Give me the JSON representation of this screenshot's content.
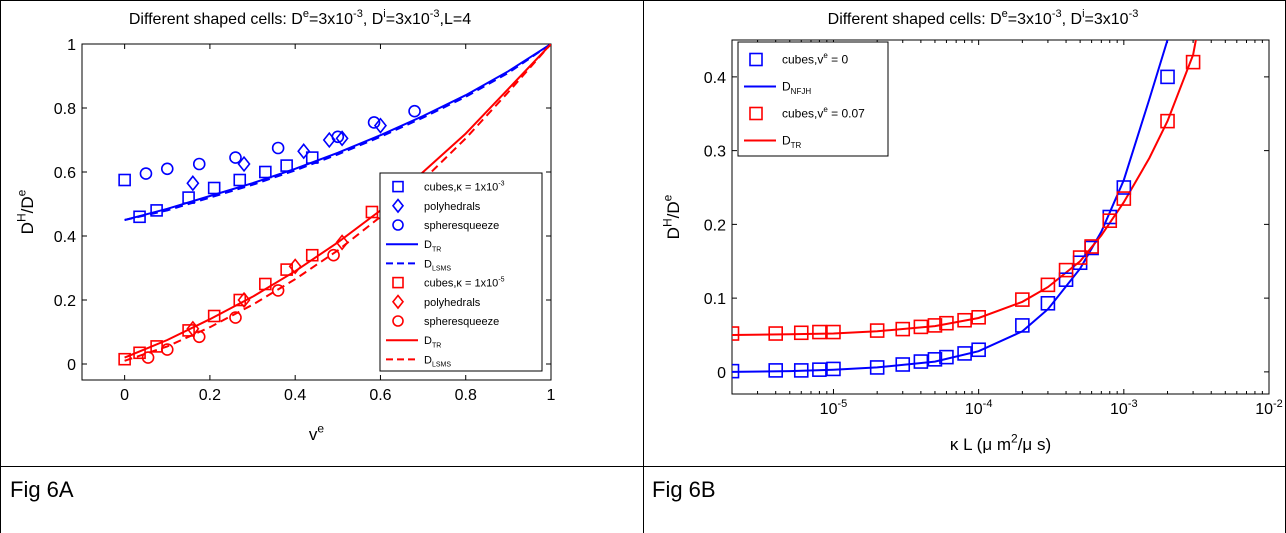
{
  "captions": {
    "left": "Fig 6A",
    "right": "Fig 6B"
  },
  "chart_data": [
    {
      "type": "scatter",
      "title": "Different shaped cells: D^e=3x10^-3, D^i=3x10^-3,L=4",
      "xlabel": "v^e",
      "ylabel": "D^H/D^e",
      "xlim": [
        -0.1,
        1.0
      ],
      "ylim": [
        -0.05,
        1.0
      ],
      "xticks": [
        0,
        0.2,
        0.4,
        0.6,
        0.8,
        1
      ],
      "xtick_labels": [
        "0",
        "0.2",
        "0.4",
        "0.6",
        "0.8",
        "1"
      ],
      "yticks": [
        0,
        0.2,
        0.4,
        0.6,
        0.8,
        1
      ],
      "ytick_labels": [
        "0",
        "0.2",
        "0.4",
        "0.6",
        "0.8",
        "1"
      ],
      "grid": false,
      "legend_position": "right",
      "legend": [
        {
          "label": "cubes,κ = 1x10^-3",
          "marker": "square",
          "color": "#0000ff"
        },
        {
          "label": "polyhedrals",
          "marker": "diamond",
          "color": "#0000ff"
        },
        {
          "label": "spheresqueeze",
          "marker": "circle",
          "color": "#0000ff"
        },
        {
          "label": "D_TR",
          "line": "solid",
          "color": "#0000ff"
        },
        {
          "label": "D_LSMS",
          "line": "dashed",
          "color": "#0000ff"
        },
        {
          "label": "cubes,κ = 1x10^-5",
          "marker": "square",
          "color": "#ff0000"
        },
        {
          "label": "polyhedrals",
          "marker": "diamond",
          "color": "#ff0000"
        },
        {
          "label": "spheresqueeze",
          "marker": "circle",
          "color": "#ff0000"
        },
        {
          "label": "D_TR",
          "line": "solid",
          "color": "#ff0000"
        },
        {
          "label": "D_LSMS",
          "line": "dashed",
          "color": "#ff0000"
        }
      ],
      "series": [
        {
          "marker": "square",
          "color": "#0000ff",
          "x": [
            0.0,
            0.035,
            0.075,
            0.15,
            0.21,
            0.27,
            0.33,
            0.38,
            0.44
          ],
          "y": [
            0.575,
            0.46,
            0.48,
            0.52,
            0.55,
            0.575,
            0.6,
            0.62,
            0.645
          ]
        },
        {
          "marker": "diamond",
          "color": "#0000ff",
          "x": [
            0.16,
            0.28,
            0.42,
            0.48,
            0.51,
            0.6
          ],
          "y": [
            0.565,
            0.625,
            0.665,
            0.7,
            0.705,
            0.745
          ]
        },
        {
          "marker": "circle",
          "color": "#0000ff",
          "x": [
            0.05,
            0.1,
            0.175,
            0.26,
            0.36,
            0.5,
            0.585,
            0.68
          ],
          "y": [
            0.595,
            0.61,
            0.625,
            0.645,
            0.675,
            0.71,
            0.755,
            0.79
          ]
        },
        {
          "marker": "square",
          "color": "#ff0000",
          "x": [
            0.0,
            0.035,
            0.075,
            0.15,
            0.21,
            0.27,
            0.33,
            0.38,
            0.44,
            0.58
          ],
          "y": [
            0.015,
            0.035,
            0.055,
            0.105,
            0.15,
            0.2,
            0.25,
            0.295,
            0.34,
            0.475
          ]
        },
        {
          "marker": "diamond",
          "color": "#ff0000",
          "x": [
            0.16,
            0.28,
            0.4,
            0.51
          ],
          "y": [
            0.11,
            0.2,
            0.305,
            0.38
          ]
        },
        {
          "marker": "circle",
          "color": "#ff0000",
          "x": [
            0.055,
            0.1,
            0.175,
            0.26,
            0.36,
            0.49
          ],
          "y": [
            0.02,
            0.045,
            0.085,
            0.145,
            0.23,
            0.34
          ]
        },
        {
          "line": "solid",
          "color": "#0000ff",
          "x": [
            0,
            0.1,
            0.2,
            0.3,
            0.4,
            0.5,
            0.6,
            0.7,
            0.8,
            0.9,
            1.0
          ],
          "y": [
            0.45,
            0.485,
            0.525,
            0.565,
            0.61,
            0.66,
            0.715,
            0.775,
            0.84,
            0.915,
            1.0
          ]
        },
        {
          "line": "dashed",
          "color": "#0000ff",
          "x": [
            0,
            0.1,
            0.2,
            0.3,
            0.4,
            0.5,
            0.6,
            0.7,
            0.8,
            0.9,
            1.0
          ],
          "y": [
            0.45,
            0.48,
            0.52,
            0.56,
            0.605,
            0.655,
            0.71,
            0.77,
            0.835,
            0.91,
            1.0
          ]
        },
        {
          "line": "solid",
          "color": "#ff0000",
          "x": [
            0,
            0.1,
            0.2,
            0.3,
            0.4,
            0.5,
            0.6,
            0.7,
            0.8,
            0.9,
            1.0
          ],
          "y": [
            0.02,
            0.075,
            0.14,
            0.21,
            0.29,
            0.38,
            0.48,
            0.6,
            0.72,
            0.86,
            1.0
          ]
        },
        {
          "line": "dashed",
          "color": "#ff0000",
          "x": [
            0,
            0.1,
            0.2,
            0.3,
            0.4,
            0.5,
            0.6,
            0.7,
            0.8,
            0.9,
            1.0
          ],
          "y": [
            0.01,
            0.055,
            0.115,
            0.185,
            0.265,
            0.355,
            0.46,
            0.575,
            0.705,
            0.85,
            1.0
          ]
        }
      ]
    },
    {
      "type": "scatter",
      "title": "Different shaped cells: D^e=3x10^-3, D^i=3x10^-3",
      "xlabel": "κ L (μ m^2/μ s)",
      "ylabel": "D^H/D^e",
      "xscale": "log",
      "xlim": [
        2e-06,
        0.01
      ],
      "ylim": [
        -0.03,
        0.45
      ],
      "xticks": [
        1e-05,
        0.0001,
        0.001,
        0.01
      ],
      "xtick_labels": [
        "10^-5",
        "10^-4",
        "10^-3",
        "10^-2"
      ],
      "yticks": [
        0,
        0.1,
        0.2,
        0.3,
        0.4
      ],
      "ytick_labels": [
        "0",
        "0.1",
        "0.2",
        "0.3",
        "0.4"
      ],
      "grid": false,
      "legend_position": "top-left",
      "legend": [
        {
          "label": "cubes,v^e = 0",
          "marker": "square",
          "color": "#0000ff"
        },
        {
          "label": "D_NFJH",
          "line": "solid",
          "color": "#0000ff"
        },
        {
          "label": "cubes,v^e = 0.07",
          "marker": "square",
          "color": "#ff0000"
        },
        {
          "label": "D_TR",
          "line": "solid",
          "color": "#ff0000"
        }
      ],
      "series": [
        {
          "marker": "square",
          "color": "#0000ff",
          "x": [
            2e-06,
            4e-06,
            6e-06,
            8e-06,
            1e-05,
            2e-05,
            3e-05,
            4e-05,
            5e-05,
            6e-05,
            8e-05,
            0.0001,
            0.0002,
            0.0003,
            0.0004,
            0.0005,
            0.0006,
            0.0008,
            0.001,
            0.002
          ],
          "y": [
            0.001,
            0.002,
            0.002,
            0.003,
            0.004,
            0.006,
            0.01,
            0.014,
            0.017,
            0.02,
            0.025,
            0.03,
            0.063,
            0.093,
            0.125,
            0.148,
            0.168,
            0.21,
            0.25,
            0.4
          ]
        },
        {
          "marker": "square",
          "color": "#ff0000",
          "x": [
            2e-06,
            4e-06,
            6e-06,
            8e-06,
            1e-05,
            2e-05,
            3e-05,
            4e-05,
            5e-05,
            6e-05,
            8e-05,
            0.0001,
            0.0002,
            0.0003,
            0.0004,
            0.0005,
            0.0006,
            0.0008,
            0.001,
            0.002,
            0.003
          ],
          "y": [
            0.052,
            0.052,
            0.053,
            0.054,
            0.054,
            0.056,
            0.058,
            0.061,
            0.063,
            0.066,
            0.07,
            0.074,
            0.098,
            0.118,
            0.138,
            0.155,
            0.17,
            0.205,
            0.235,
            0.34,
            0.42
          ]
        },
        {
          "line": "solid",
          "color": "#0000ff",
          "x": [
            2e-06,
            5e-06,
            1e-05,
            2e-05,
            5e-05,
            0.0001,
            0.0002,
            0.0003,
            0.0005,
            0.0007,
            0.001,
            0.0015,
            0.002,
            0.0025
          ],
          "y": [
            0.0,
            0.001,
            0.003,
            0.006,
            0.014,
            0.028,
            0.055,
            0.085,
            0.14,
            0.19,
            0.26,
            0.37,
            0.45,
            0.5
          ]
        },
        {
          "line": "solid",
          "color": "#ff0000",
          "x": [
            2e-06,
            5e-06,
            1e-05,
            2e-05,
            5e-05,
            0.0001,
            0.0002,
            0.0003,
            0.0005,
            0.0007,
            0.001,
            0.0015,
            0.002,
            0.003,
            0.0035
          ],
          "y": [
            0.05,
            0.051,
            0.052,
            0.055,
            0.062,
            0.073,
            0.095,
            0.115,
            0.15,
            0.185,
            0.23,
            0.29,
            0.34,
            0.43,
            0.5
          ]
        }
      ]
    }
  ]
}
